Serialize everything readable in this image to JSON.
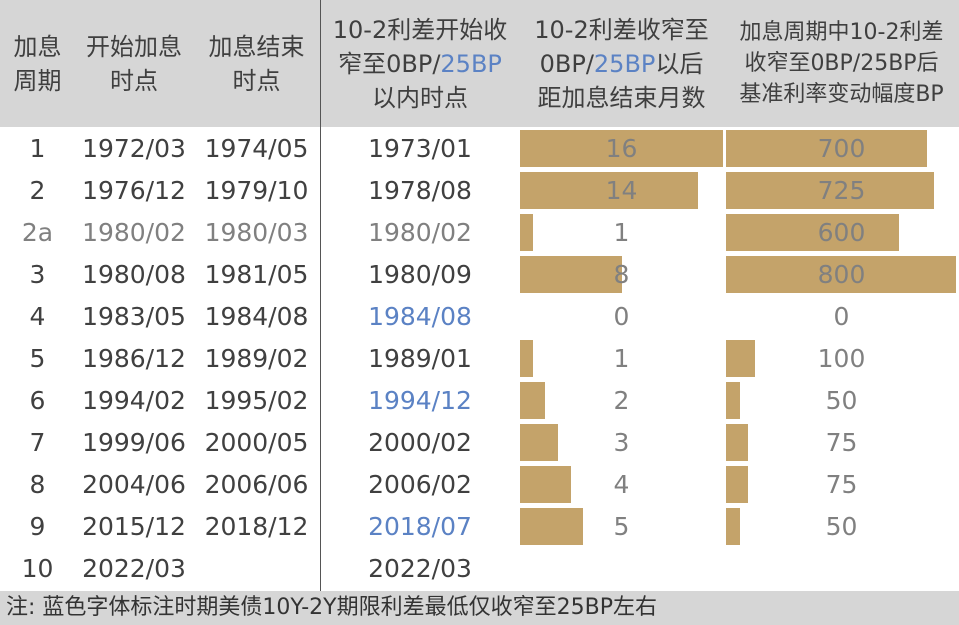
{
  "headers": {
    "col1": [
      "加息",
      "周期"
    ],
    "col2": [
      "开始加息",
      "时点"
    ],
    "col3": [
      "加息结束",
      "时点"
    ],
    "col4": {
      "l1": "10-2利差开始收",
      "l2a": "窄至0BP/",
      "l2b": "25BP",
      "l3": "以内时点"
    },
    "col5": {
      "l1": "10-2利差收窄至",
      "l2a": "0BP/",
      "l2b": "25BP",
      "l2c": "以后",
      "l3": "距加息结束月数"
    },
    "col6": [
      "加息周期中10-2利差",
      "收窄至0BP/25BP后",
      "基准利率变动幅度BP"
    ]
  },
  "colors": {
    "bar": "#c4a36a",
    "header_bg": "#d6d6d6",
    "blue": "#5b82c4",
    "gray": "#808080"
  },
  "rows": [
    {
      "cycle": "1",
      "start": "1972/03",
      "end": "1974/05",
      "narrow": "1973/01",
      "months": "16",
      "bp": "700",
      "style": "normal",
      "narrow_blue": false
    },
    {
      "cycle": "2",
      "start": "1976/12",
      "end": "1979/10",
      "narrow": "1978/08",
      "months": "14",
      "bp": "725",
      "style": "normal",
      "narrow_blue": false
    },
    {
      "cycle": "2a",
      "start": "1980/02",
      "end": "1980/03",
      "narrow": "1980/02",
      "months": "1",
      "bp": "600",
      "style": "gray",
      "narrow_blue": false
    },
    {
      "cycle": "3",
      "start": "1980/08",
      "end": "1981/05",
      "narrow": "1980/09",
      "months": "8",
      "bp": "800",
      "style": "normal",
      "narrow_blue": false
    },
    {
      "cycle": "4",
      "start": "1983/05",
      "end": "1984/08",
      "narrow": "1984/08",
      "months": "0",
      "bp": "0",
      "style": "normal",
      "narrow_blue": true
    },
    {
      "cycle": "5",
      "start": "1986/12",
      "end": "1989/02",
      "narrow": "1989/01",
      "months": "1",
      "bp": "100",
      "style": "normal",
      "narrow_blue": false
    },
    {
      "cycle": "6",
      "start": "1994/02",
      "end": "1995/02",
      "narrow": "1994/12",
      "months": "2",
      "bp": "50",
      "style": "normal",
      "narrow_blue": true
    },
    {
      "cycle": "7",
      "start": "1999/06",
      "end": "2000/05",
      "narrow": "2000/02",
      "months": "3",
      "bp": "75",
      "style": "normal",
      "narrow_blue": false
    },
    {
      "cycle": "8",
      "start": "2004/06",
      "end": "2006/06",
      "narrow": "2006/02",
      "months": "4",
      "bp": "75",
      "style": "normal",
      "narrow_blue": false
    },
    {
      "cycle": "9",
      "start": "2015/12",
      "end": "2018/12",
      "narrow": "2018/07",
      "months": "5",
      "bp": "50",
      "style": "normal",
      "narrow_blue": true
    },
    {
      "cycle": "10",
      "start": "2022/03",
      "end": "",
      "narrow": "2022/03",
      "months": "",
      "bp": "",
      "style": "normal",
      "narrow_blue": false
    }
  ],
  "chart_data": {
    "type": "table",
    "categories": [
      "1",
      "2",
      "2a",
      "3",
      "4",
      "5",
      "6",
      "7",
      "8",
      "9"
    ],
    "series": [
      {
        "name": "10-2利差收窄至0BP/25BP以后距加息结束月数",
        "values": [
          16,
          14,
          1,
          8,
          0,
          1,
          2,
          3,
          4,
          5
        ]
      },
      {
        "name": "加息周期中10-2利差收窄至0BP/25BP后基准利率变动幅度BP",
        "values": [
          700,
          725,
          600,
          800,
          0,
          100,
          50,
          75,
          75,
          50
        ]
      }
    ],
    "scale": {
      "months_max": 16,
      "bp_max": 800
    }
  },
  "note": "注: 蓝色字体标注时期美债10Y-2Y期限利差最低仅收窄至25BP左右"
}
